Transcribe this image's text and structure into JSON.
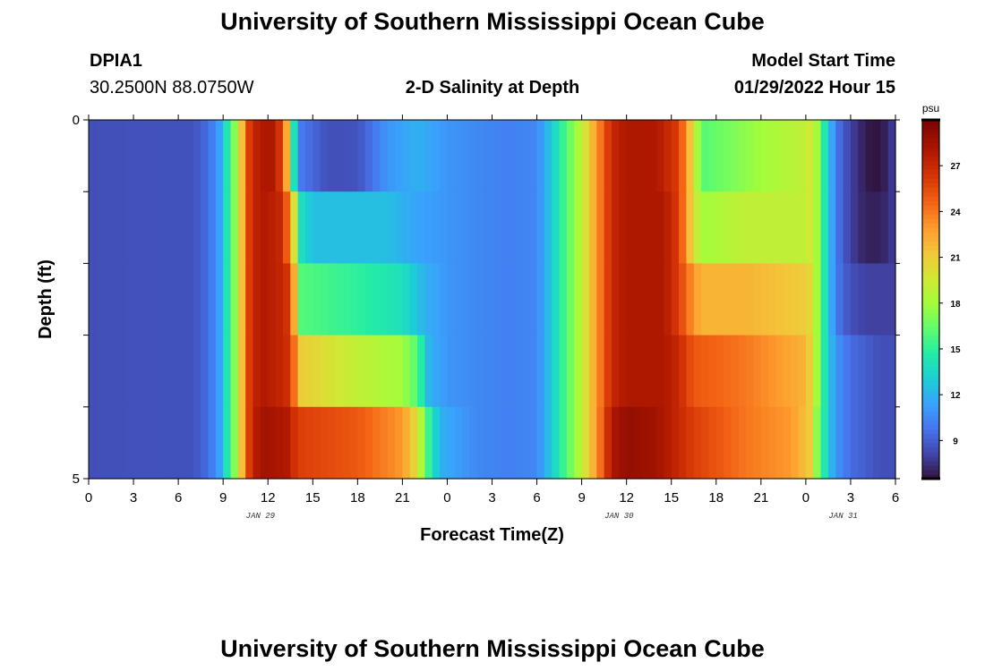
{
  "header": {
    "title": "University of Southern Mississippi Ocean Cube",
    "station_id": "DPIA1",
    "station_coords": "30.2500N  88.0750W",
    "plot_title": "2-D Salinity at Depth",
    "model_start_label": "Model Start Time",
    "model_start_value": "01/29/2022 Hour 15"
  },
  "footer": {
    "title": "University of Southern Mississippi Ocean Cube"
  },
  "chart_data": {
    "type": "heatmap",
    "title": "2-D Salinity at Depth",
    "xlabel": "Forecast Time(Z)",
    "ylabel": "Depth (ft)",
    "x_tick_labels": [
      "0",
      "3",
      "6",
      "9",
      "12",
      "15",
      "18",
      "21",
      "0",
      "3",
      "6",
      "9",
      "12",
      "15",
      "18",
      "21",
      "0",
      "3",
      "6"
    ],
    "date_labels": [
      {
        "label": "JAN 29",
        "at_hour": 11.5
      },
      {
        "label": "JAN 30",
        "at_hour": 35.5
      },
      {
        "label": "JAN 31",
        "at_hour": 50.5
      }
    ],
    "x_range_hours": [
      0,
      54
    ],
    "x_step_hours": 0.5,
    "y_range_ft": [
      0,
      5
    ],
    "y_tick_labels": [
      "0",
      "5"
    ],
    "depth_layers": 5,
    "colorbar": {
      "unit": "psu",
      "range": [
        6.5,
        30
      ],
      "tick_values": [
        9,
        12,
        15,
        18,
        21,
        24,
        27
      ]
    },
    "layer_profiles_psu": [
      [
        [
          0,
          8.5
        ],
        [
          7,
          8.6
        ],
        [
          8,
          9.5
        ],
        [
          8.8,
          11.5
        ],
        [
          9.3,
          14.5
        ],
        [
          9.8,
          17.5
        ],
        [
          10.3,
          22
        ],
        [
          10.8,
          26.5
        ],
        [
          11.5,
          28
        ],
        [
          12.5,
          28
        ],
        [
          13,
          25
        ],
        [
          13.5,
          20
        ],
        [
          13.8,
          13
        ],
        [
          14.2,
          10
        ],
        [
          16,
          8.5
        ],
        [
          18,
          8.6
        ],
        [
          20,
          11
        ],
        [
          22,
          12
        ],
        [
          24,
          11
        ],
        [
          26,
          10.5
        ],
        [
          28,
          10.2
        ],
        [
          30,
          10.5
        ],
        [
          31,
          13
        ],
        [
          32,
          16
        ],
        [
          33,
          19
        ],
        [
          34,
          23
        ],
        [
          35,
          27
        ],
        [
          36,
          28
        ],
        [
          38,
          28
        ],
        [
          39.5,
          26
        ],
        [
          40.5,
          20
        ],
        [
          41,
          16
        ],
        [
          43,
          17
        ],
        [
          45,
          18
        ],
        [
          48,
          19
        ],
        [
          48.5,
          20
        ],
        [
          49,
          16
        ],
        [
          49.5,
          13
        ],
        [
          50,
          10
        ],
        [
          51,
          8
        ],
        [
          51.5,
          7.5
        ],
        [
          52,
          6.8
        ],
        [
          53,
          6.5
        ],
        [
          53.6,
          7.5
        ],
        [
          54,
          8
        ]
      ],
      [
        [
          0,
          8.5
        ],
        [
          7,
          8.6
        ],
        [
          8,
          9.5
        ],
        [
          8.8,
          11.5
        ],
        [
          9.3,
          14.5
        ],
        [
          9.8,
          17.5
        ],
        [
          10.3,
          22
        ],
        [
          10.8,
          26.5
        ],
        [
          11.5,
          28
        ],
        [
          13,
          27
        ],
        [
          13.6,
          22
        ],
        [
          14.2,
          14
        ],
        [
          15,
          12.5
        ],
        [
          20,
          12.5
        ],
        [
          22,
          11.5
        ],
        [
          24,
          11
        ],
        [
          26,
          10.5
        ],
        [
          28,
          10.2
        ],
        [
          30,
          10.5
        ],
        [
          31,
          13
        ],
        [
          32,
          16
        ],
        [
          33,
          19
        ],
        [
          34,
          23
        ],
        [
          35,
          27
        ],
        [
          36,
          28
        ],
        [
          38.5,
          28
        ],
        [
          39.5,
          26
        ],
        [
          40.5,
          20
        ],
        [
          41,
          18
        ],
        [
          44,
          19
        ],
        [
          48,
          19
        ],
        [
          48.5,
          20
        ],
        [
          49,
          16
        ],
        [
          49.5,
          13
        ],
        [
          50,
          10
        ],
        [
          51,
          8
        ],
        [
          51.5,
          7.5
        ],
        [
          52,
          7
        ],
        [
          53,
          7
        ],
        [
          53.6,
          7.5
        ],
        [
          54,
          8
        ]
      ],
      [
        [
          0,
          8.5
        ],
        [
          7,
          8.6
        ],
        [
          8,
          9.5
        ],
        [
          8.8,
          11.5
        ],
        [
          9.3,
          14.5
        ],
        [
          9.8,
          17.5
        ],
        [
          10.3,
          22
        ],
        [
          10.8,
          26.5
        ],
        [
          11.5,
          28
        ],
        [
          13.2,
          27
        ],
        [
          13.8,
          22
        ],
        [
          14.2,
          16
        ],
        [
          18,
          15
        ],
        [
          21,
          14
        ],
        [
          22.5,
          12
        ],
        [
          24,
          11
        ],
        [
          26,
          10.5
        ],
        [
          28,
          10.2
        ],
        [
          30,
          10.5
        ],
        [
          31,
          13
        ],
        [
          32,
          16
        ],
        [
          33,
          19
        ],
        [
          34,
          23
        ],
        [
          35,
          27
        ],
        [
          36,
          28
        ],
        [
          38.5,
          28
        ],
        [
          39.5,
          26
        ],
        [
          40.5,
          23
        ],
        [
          41,
          22
        ],
        [
          44,
          22
        ],
        [
          48,
          21
        ],
        [
          48.5,
          20
        ],
        [
          49,
          16
        ],
        [
          49.5,
          13
        ],
        [
          50,
          10
        ],
        [
          51,
          8.5
        ],
        [
          52,
          8
        ],
        [
          53,
          8
        ],
        [
          53.6,
          8
        ],
        [
          54,
          8
        ]
      ],
      [
        [
          0,
          8.5
        ],
        [
          7,
          8.6
        ],
        [
          8,
          9.5
        ],
        [
          8.8,
          11.5
        ],
        [
          9.3,
          14.5
        ],
        [
          9.8,
          17.5
        ],
        [
          10.3,
          22
        ],
        [
          10.8,
          26.5
        ],
        [
          11.5,
          28
        ],
        [
          13.2,
          27
        ],
        [
          13.8,
          24
        ],
        [
          14.2,
          21
        ],
        [
          18,
          19
        ],
        [
          21,
          18
        ],
        [
          22,
          16
        ],
        [
          22.8,
          12
        ],
        [
          24,
          11
        ],
        [
          26,
          10.5
        ],
        [
          28,
          10.2
        ],
        [
          30,
          10.5
        ],
        [
          31,
          13
        ],
        [
          32,
          16
        ],
        [
          33,
          19
        ],
        [
          34,
          23
        ],
        [
          35,
          27
        ],
        [
          36,
          28
        ],
        [
          38.5,
          28
        ],
        [
          39.5,
          27
        ],
        [
          40.5,
          25
        ],
        [
          44,
          24
        ],
        [
          48,
          22
        ],
        [
          48.5,
          20
        ],
        [
          49,
          16
        ],
        [
          49.5,
          13
        ],
        [
          50,
          11
        ],
        [
          51,
          9.5
        ],
        [
          52,
          9
        ],
        [
          53,
          8.5
        ],
        [
          54,
          8.5
        ]
      ],
      [
        [
          0,
          8.5
        ],
        [
          7,
          8.6
        ],
        [
          8,
          9.5
        ],
        [
          8.8,
          11.5
        ],
        [
          9.3,
          14.5
        ],
        [
          9.8,
          17.5
        ],
        [
          10.3,
          22
        ],
        [
          10.8,
          26.5
        ],
        [
          11.5,
          28.5
        ],
        [
          13.2,
          28
        ],
        [
          14,
          26
        ],
        [
          18,
          25
        ],
        [
          21,
          23
        ],
        [
          22,
          20
        ],
        [
          22.8,
          15
        ],
        [
          23.5,
          12
        ],
        [
          26,
          10.5
        ],
        [
          28,
          10.2
        ],
        [
          30,
          10.5
        ],
        [
          31,
          13
        ],
        [
          32,
          16
        ],
        [
          33,
          19
        ],
        [
          34,
          23
        ],
        [
          35,
          28
        ],
        [
          36,
          29
        ],
        [
          38,
          28.5
        ],
        [
          39.5,
          27
        ],
        [
          40.5,
          26
        ],
        [
          44,
          24
        ],
        [
          47,
          23
        ],
        [
          48.3,
          21
        ],
        [
          48.8,
          17
        ],
        [
          49.5,
          13
        ],
        [
          50,
          11
        ],
        [
          51,
          9.5
        ],
        [
          52,
          9
        ],
        [
          53,
          8.5
        ],
        [
          54,
          8.5
        ]
      ]
    ]
  }
}
